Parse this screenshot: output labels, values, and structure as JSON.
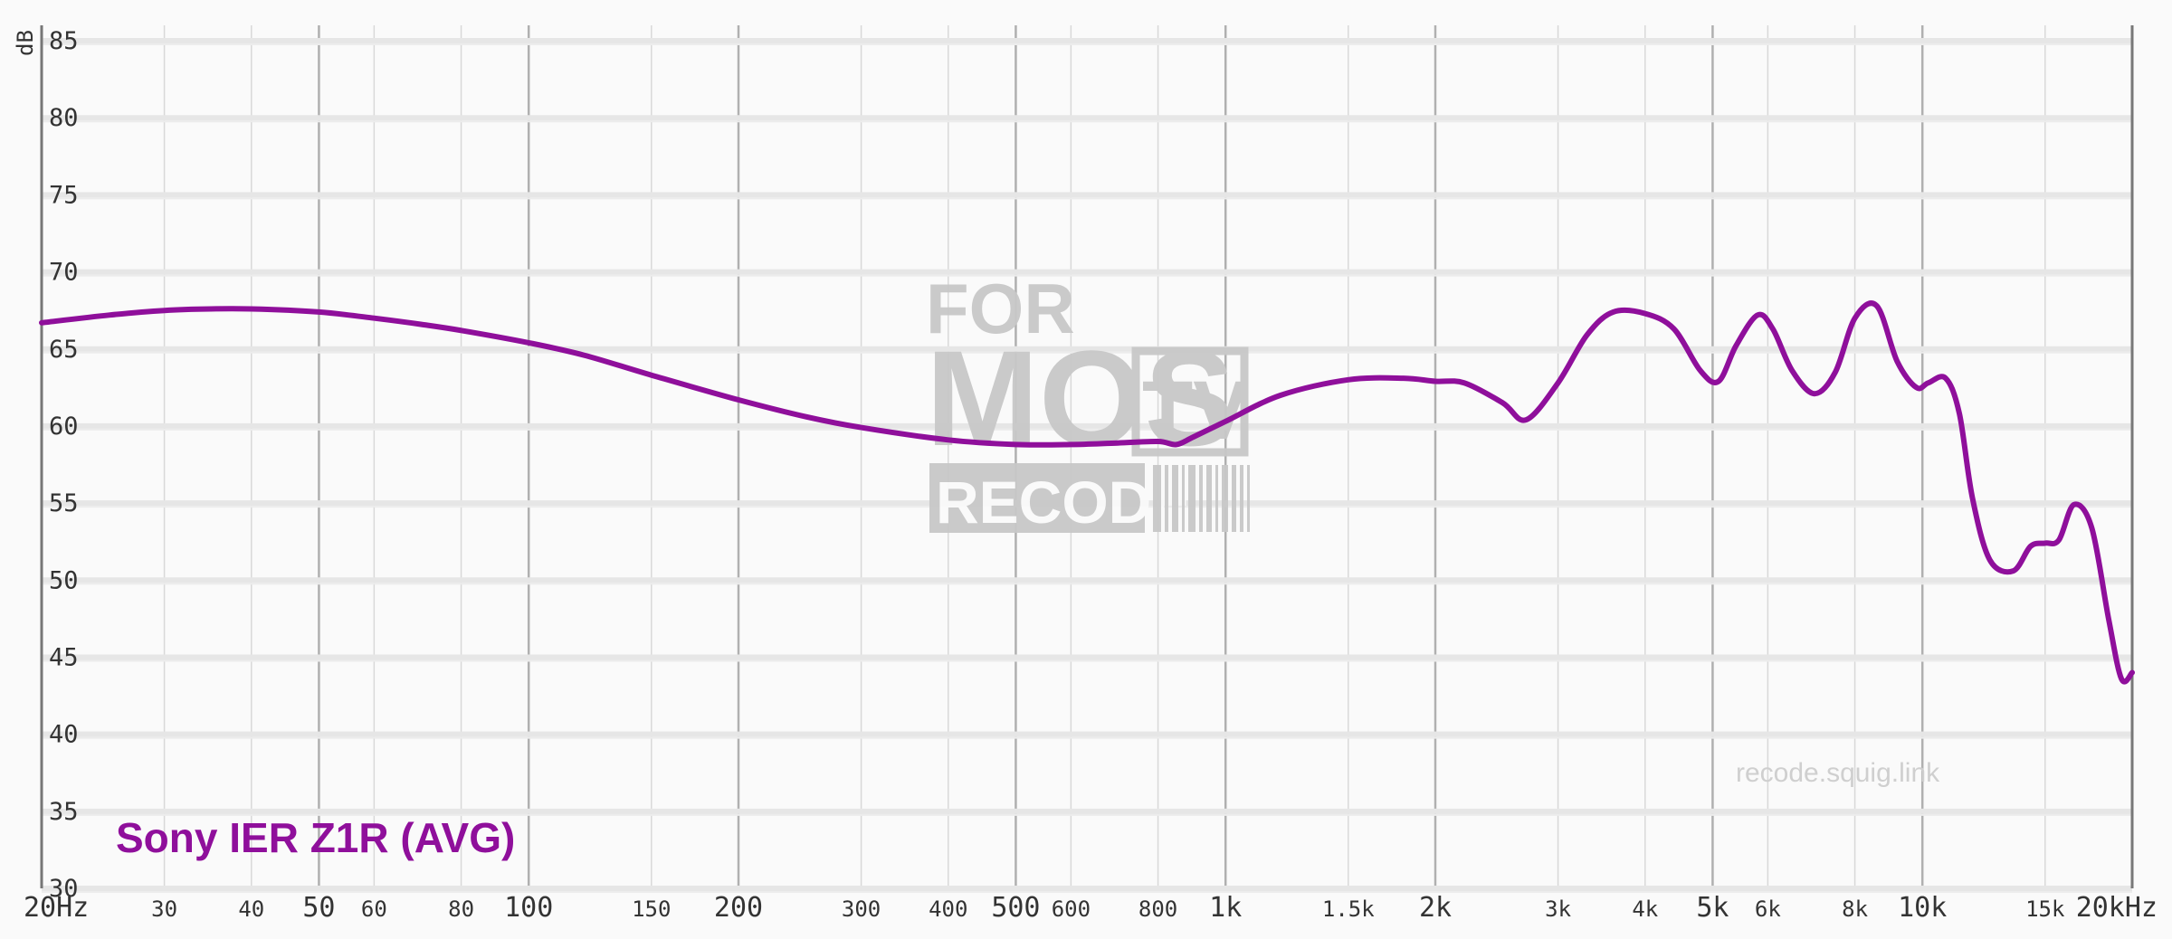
{
  "chart_data": {
    "type": "line",
    "title": "",
    "xlabel": "",
    "ylabel": "dB",
    "x_scale": "log",
    "xlim": [
      20,
      20000
    ],
    "ylim": [
      30,
      86
    ],
    "grid": true,
    "legend_placement": "bottom-left",
    "y_ticks": [
      "30",
      "35",
      "40",
      "45",
      "50",
      "55",
      "60",
      "65",
      "70",
      "75",
      "80",
      "85"
    ],
    "x_ticks": [
      {
        "value": 20,
        "label": "20Hz",
        "major": true
      },
      {
        "value": 30,
        "label": "30",
        "major": false
      },
      {
        "value": 40,
        "label": "40",
        "major": false
      },
      {
        "value": 50,
        "label": "50",
        "major": true
      },
      {
        "value": 60,
        "label": "60",
        "major": false
      },
      {
        "value": 80,
        "label": "80",
        "major": false
      },
      {
        "value": 100,
        "label": "100",
        "major": true
      },
      {
        "value": 150,
        "label": "150",
        "major": false
      },
      {
        "value": 200,
        "label": "200",
        "major": true
      },
      {
        "value": 300,
        "label": "300",
        "major": false
      },
      {
        "value": 400,
        "label": "400",
        "major": false
      },
      {
        "value": 500,
        "label": "500",
        "major": true
      },
      {
        "value": 600,
        "label": "600",
        "major": false
      },
      {
        "value": 800,
        "label": "800",
        "major": false
      },
      {
        "value": 1000,
        "label": "1k",
        "major": true
      },
      {
        "value": 1500,
        "label": "1.5k",
        "major": false
      },
      {
        "value": 2000,
        "label": "2k",
        "major": true
      },
      {
        "value": 3000,
        "label": "3k",
        "major": false
      },
      {
        "value": 4000,
        "label": "4k",
        "major": false
      },
      {
        "value": 5000,
        "label": "5k",
        "major": true
      },
      {
        "value": 6000,
        "label": "6k",
        "major": false
      },
      {
        "value": 8000,
        "label": "8k",
        "major": false
      },
      {
        "value": 10000,
        "label": "10k",
        "major": true
      },
      {
        "value": 15000,
        "label": "15k",
        "major": false
      },
      {
        "value": 20000,
        "label": "20kHz",
        "major": true
      }
    ],
    "series": [
      {
        "name": "Sony IER Z1R (AVG)",
        "color": "#8f0f9b",
        "x": [
          20,
          25,
          30,
          35,
          40,
          50,
          60,
          70,
          80,
          100,
          120,
          150,
          200,
          250,
          300,
          400,
          500,
          600,
          700,
          800,
          850,
          900,
          1000,
          1200,
          1500,
          1800,
          2000,
          2200,
          2500,
          2700,
          3000,
          3300,
          3600,
          4000,
          4400,
          4800,
          5100,
          5400,
          5800,
          6100,
          6500,
          7000,
          7500,
          8000,
          8600,
          9200,
          9800,
          10200,
          10800,
          11300,
          11800,
          12500,
          13500,
          14300,
          15000,
          15700,
          16500,
          17500,
          18500,
          19300,
          20000
        ],
        "y": [
          66.7,
          67.2,
          67.5,
          67.6,
          67.6,
          67.4,
          67.0,
          66.6,
          66.2,
          65.4,
          64.6,
          63.3,
          61.7,
          60.6,
          59.9,
          59.1,
          58.8,
          58.8,
          58.9,
          59.0,
          58.8,
          59.3,
          60.3,
          62.0,
          63.0,
          63.1,
          62.9,
          62.8,
          61.5,
          60.4,
          62.8,
          65.9,
          67.4,
          67.3,
          66.3,
          63.6,
          62.9,
          65.2,
          67.2,
          66.3,
          63.6,
          62.1,
          63.5,
          67.0,
          67.8,
          64.2,
          62.5,
          62.8,
          63.1,
          60.8,
          55.3,
          51.3,
          50.6,
          52.2,
          52.4,
          52.6,
          54.9,
          53.4,
          47.5,
          43.6,
          44.0
        ]
      }
    ],
    "legend": [
      {
        "text": "Sony IER Z1R (AVG)",
        "color": "#8f0f9b"
      }
    ]
  },
  "watermark": {
    "logo_text": [
      "FOR",
      "MOS",
      "TV",
      "RECODE"
    ],
    "url": "recode.squig.link"
  }
}
